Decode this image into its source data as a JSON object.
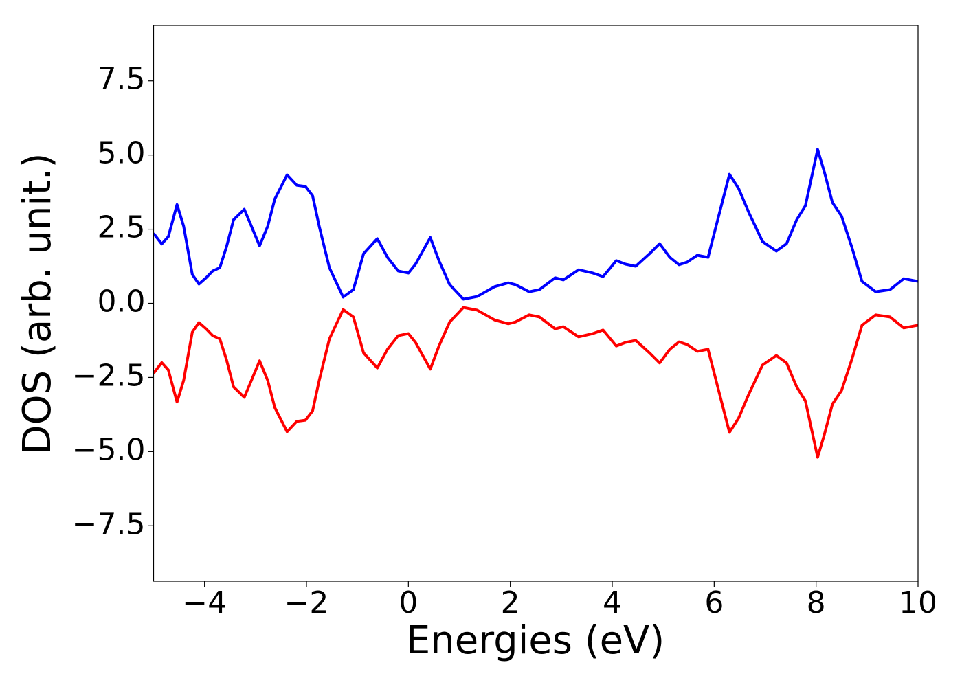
{
  "chart_data": {
    "type": "line",
    "xlabel": "Energies (eV)",
    "ylabel": "DOS (arb. unit.)",
    "x": [
      -5,
      -4.84,
      -4.71,
      -4.54,
      -4.41,
      -4.24,
      -4.11,
      -3.97,
      -3.84,
      -3.7,
      -3.57,
      -3.43,
      -3.22,
      -3.08,
      -2.92,
      -2.76,
      -2.62,
      -2.38,
      -2.19,
      -2.02,
      -1.88,
      -1.75,
      -1.55,
      -1.28,
      -1.08,
      -0.88,
      -0.61,
      -0.41,
      -0.2,
      0.0,
      0.14,
      0.43,
      0.6,
      0.81,
      1.08,
      1.35,
      1.69,
      1.96,
      2.1,
      2.37,
      2.57,
      2.88,
      3.04,
      3.34,
      3.62,
      3.82,
      4.08,
      4.26,
      4.46,
      4.73,
      4.93,
      5.13,
      5.31,
      5.47,
      5.67,
      5.88,
      6.07,
      6.3,
      6.48,
      6.68,
      6.95,
      7.22,
      7.42,
      7.62,
      7.79,
      8.03,
      8.16,
      8.32,
      8.5,
      8.7,
      8.9,
      9.17,
      9.45,
      9.72,
      10.0
    ],
    "series": [
      {
        "color": "#0000ff",
        "values": [
          2.36,
          2.0,
          2.25,
          3.33,
          2.6,
          0.97,
          0.65,
          0.86,
          1.09,
          1.2,
          1.9,
          2.82,
          3.17,
          2.6,
          1.94,
          2.6,
          3.52,
          4.33,
          3.98,
          3.94,
          3.63,
          2.6,
          1.2,
          0.21,
          0.46,
          1.67,
          2.18,
          1.55,
          1.09,
          1.02,
          1.32,
          2.22,
          1.44,
          0.63,
          0.14,
          0.23,
          0.56,
          0.69,
          0.63,
          0.39,
          0.46,
          0.86,
          0.79,
          1.13,
          1.02,
          0.9,
          1.44,
          1.32,
          1.25,
          1.67,
          2.01,
          1.55,
          1.3,
          1.39,
          1.62,
          1.55,
          2.82,
          4.35,
          3.87,
          3.06,
          2.08,
          1.76,
          2.01,
          2.82,
          3.29,
          5.19,
          4.44,
          3.4,
          2.94,
          1.9,
          0.74,
          0.39,
          0.46,
          0.83,
          0.74
        ]
      },
      {
        "color": "#ff0000",
        "values": [
          -2.36,
          -2.0,
          -2.25,
          -3.33,
          -2.6,
          -0.97,
          -0.65,
          -0.86,
          -1.09,
          -1.2,
          -1.9,
          -2.82,
          -3.17,
          -2.6,
          -1.94,
          -2.6,
          -3.52,
          -4.33,
          -3.98,
          -3.94,
          -3.63,
          -2.6,
          -1.2,
          -0.21,
          -0.46,
          -1.67,
          -2.18,
          -1.55,
          -1.09,
          -1.02,
          -1.32,
          -2.22,
          -1.44,
          -0.63,
          -0.14,
          -0.23,
          -0.56,
          -0.69,
          -0.63,
          -0.39,
          -0.46,
          -0.86,
          -0.79,
          -1.13,
          -1.02,
          -0.9,
          -1.44,
          -1.32,
          -1.25,
          -1.67,
          -2.01,
          -1.55,
          -1.3,
          -1.39,
          -1.62,
          -1.55,
          -2.82,
          -4.35,
          -3.87,
          -3.06,
          -2.08,
          -1.76,
          -2.01,
          -2.82,
          -3.29,
          -5.19,
          -4.44,
          -3.4,
          -2.94,
          -1.9,
          -0.74,
          -0.39,
          -0.46,
          -0.83,
          -0.74
        ]
      }
    ],
    "xlim": [
      -5,
      10
    ],
    "xticks": [
      {
        "value": -4,
        "label": "−4"
      },
      {
        "value": -2,
        "label": "−2"
      },
      0,
      2,
      4,
      6,
      8,
      10
    ],
    "ylim": [
      -9.37,
      9.37
    ],
    "yticks": [
      {
        "value": -7.5,
        "label": "−7.5"
      },
      {
        "value": -5,
        "label": "−5.0"
      },
      {
        "value": -2.5,
        "label": "−2.5"
      },
      {
        "value": 0,
        "label": "0.0"
      },
      2.5,
      {
        "value": 5,
        "label": "5.0"
      },
      7.5
    ],
    "grid": false
  }
}
